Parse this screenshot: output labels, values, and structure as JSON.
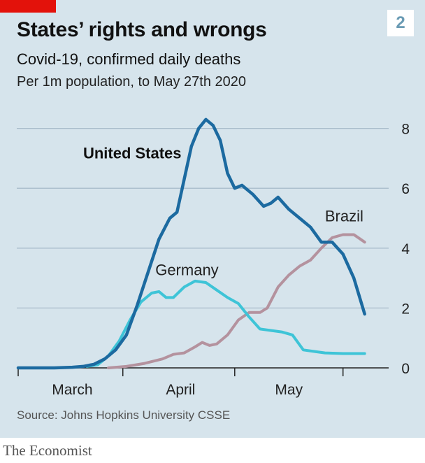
{
  "header": {
    "title": "States’ rights and wrongs",
    "subtitle": "Covid-19, confirmed daily deaths",
    "subtitle2": "Per 1m population, to May 27th 2020",
    "chart_number": "2"
  },
  "footer": {
    "source": "Source: Johns Hopkins University CSSE",
    "brand": "The Economist"
  },
  "colors": {
    "panel": "#d6e4ec",
    "united_states": "#1c6aa0",
    "germany": "#3ec4d7",
    "brazil": "#b4929e",
    "grid": "#a9bccb",
    "brand_red": "#e3120b"
  },
  "chart_data": {
    "type": "line",
    "title": "States’ rights and wrongs",
    "subtitle": "Covid-19, confirmed daily deaths",
    "ylabel": "",
    "xlabel": "",
    "x_tick_labels": [
      "March",
      "April",
      "May"
    ],
    "y_ticks": [
      0,
      2,
      4,
      6,
      8
    ],
    "ylim": [
      0,
      8.5
    ],
    "xlim": [
      "2020-02-19",
      "2020-05-27"
    ],
    "grid": true,
    "series": [
      {
        "name": "United States",
        "color": "#1c6aa0",
        "points": [
          [
            "2020-02-19",
            0.0
          ],
          [
            "2020-02-29",
            0.0
          ],
          [
            "2020-03-05",
            0.02
          ],
          [
            "2020-03-08",
            0.05
          ],
          [
            "2020-03-11",
            0.12
          ],
          [
            "2020-03-14",
            0.3
          ],
          [
            "2020-03-17",
            0.6
          ],
          [
            "2020-03-20",
            1.1
          ],
          [
            "2020-03-23",
            2.1
          ],
          [
            "2020-03-26",
            3.2
          ],
          [
            "2020-03-29",
            4.3
          ],
          [
            "2020-04-01",
            5.0
          ],
          [
            "2020-04-03",
            5.2
          ],
          [
            "2020-04-05",
            6.3
          ],
          [
            "2020-04-07",
            7.4
          ],
          [
            "2020-04-09",
            8.0
          ],
          [
            "2020-04-11",
            8.3
          ],
          [
            "2020-04-13",
            8.1
          ],
          [
            "2020-04-15",
            7.6
          ],
          [
            "2020-04-17",
            6.5
          ],
          [
            "2020-04-19",
            6.0
          ],
          [
            "2020-04-21",
            6.1
          ],
          [
            "2020-04-24",
            5.8
          ],
          [
            "2020-04-27",
            5.4
          ],
          [
            "2020-04-29",
            5.5
          ],
          [
            "2020-05-01",
            5.7
          ],
          [
            "2020-05-04",
            5.3
          ],
          [
            "2020-05-07",
            5.0
          ],
          [
            "2020-05-10",
            4.7
          ],
          [
            "2020-05-13",
            4.2
          ],
          [
            "2020-05-16",
            4.2
          ],
          [
            "2020-05-19",
            3.8
          ],
          [
            "2020-05-22",
            3.0
          ],
          [
            "2020-05-25",
            1.8
          ]
        ]
      },
      {
        "name": "Germany",
        "color": "#3ec4d7",
        "points": [
          [
            "2020-03-09",
            0.05
          ],
          [
            "2020-03-12",
            0.1
          ],
          [
            "2020-03-15",
            0.4
          ],
          [
            "2020-03-18",
            0.9
          ],
          [
            "2020-03-21",
            1.6
          ],
          [
            "2020-03-24",
            2.2
          ],
          [
            "2020-03-27",
            2.5
          ],
          [
            "2020-03-29",
            2.55
          ],
          [
            "2020-03-31",
            2.35
          ],
          [
            "2020-04-02",
            2.35
          ],
          [
            "2020-04-05",
            2.7
          ],
          [
            "2020-04-08",
            2.9
          ],
          [
            "2020-04-11",
            2.85
          ],
          [
            "2020-04-14",
            2.6
          ],
          [
            "2020-04-17",
            2.35
          ],
          [
            "2020-04-20",
            2.15
          ],
          [
            "2020-04-23",
            1.7
          ],
          [
            "2020-04-26",
            1.3
          ],
          [
            "2020-04-29",
            1.25
          ],
          [
            "2020-05-02",
            1.2
          ],
          [
            "2020-05-05",
            1.1
          ],
          [
            "2020-05-08",
            0.6
          ],
          [
            "2020-05-11",
            0.55
          ],
          [
            "2020-05-14",
            0.5
          ],
          [
            "2020-05-19",
            0.48
          ],
          [
            "2020-05-25",
            0.48
          ]
        ]
      },
      {
        "name": "Brazil",
        "color": "#b4929e",
        "points": [
          [
            "2020-03-15",
            0.0
          ],
          [
            "2020-03-20",
            0.05
          ],
          [
            "2020-03-25",
            0.15
          ],
          [
            "2020-03-30",
            0.3
          ],
          [
            "2020-04-02",
            0.45
          ],
          [
            "2020-04-05",
            0.5
          ],
          [
            "2020-04-08",
            0.7
          ],
          [
            "2020-04-10",
            0.85
          ],
          [
            "2020-04-12",
            0.75
          ],
          [
            "2020-04-14",
            0.8
          ],
          [
            "2020-04-17",
            1.1
          ],
          [
            "2020-04-20",
            1.6
          ],
          [
            "2020-04-23",
            1.85
          ],
          [
            "2020-04-26",
            1.85
          ],
          [
            "2020-04-28",
            2.0
          ],
          [
            "2020-05-01",
            2.7
          ],
          [
            "2020-05-04",
            3.1
          ],
          [
            "2020-05-07",
            3.4
          ],
          [
            "2020-05-10",
            3.6
          ],
          [
            "2020-05-13",
            4.0
          ],
          [
            "2020-05-16",
            4.35
          ],
          [
            "2020-05-19",
            4.45
          ],
          [
            "2020-05-22",
            4.45
          ],
          [
            "2020-05-25",
            4.2
          ]
        ]
      }
    ],
    "annotations": [
      "United States",
      "Germany",
      "Brazil"
    ]
  }
}
